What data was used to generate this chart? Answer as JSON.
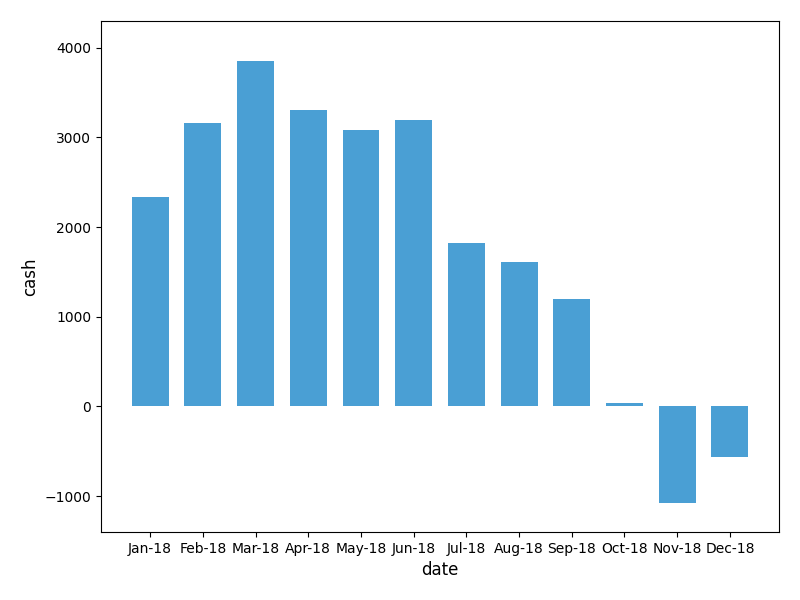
{
  "categories": [
    "Jan-18",
    "Feb-18",
    "Mar-18",
    "Apr-18",
    "May-18",
    "Jun-18",
    "Jul-18",
    "Aug-18",
    "Sep-18",
    "Oct-18",
    "Nov-18",
    "Dec-18"
  ],
  "values": [
    2340,
    3160,
    3850,
    3310,
    3080,
    3190,
    1820,
    1610,
    1200,
    40,
    -1080,
    -560
  ],
  "bar_color": "#4a9fd4",
  "title": "",
  "xlabel": "date",
  "ylabel": "cash",
  "ylim": [
    -1400,
    4300
  ],
  "xlabel_fontsize": 12,
  "ylabel_fontsize": 12,
  "tick_fontsize": 10,
  "figwidth": 8.0,
  "figheight": 6.0,
  "dpi": 100
}
